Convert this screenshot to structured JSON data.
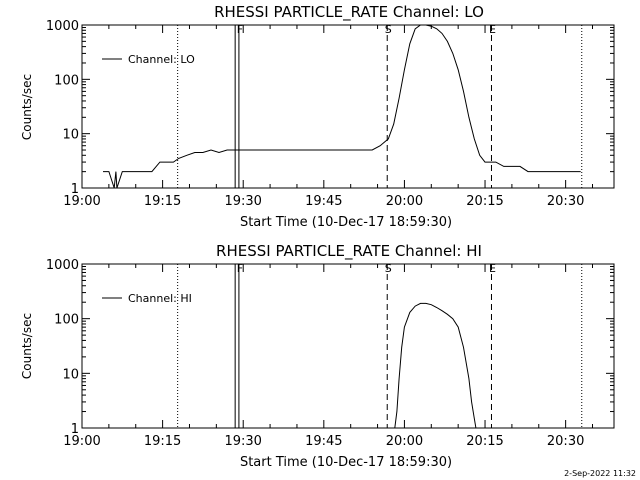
{
  "footer": {
    "timestamp": "2-Sep-2022 11:32"
  },
  "chart_data": [
    {
      "type": "line",
      "title": "RHESSI PARTICLE_RATE Channel: LO",
      "xlabel": "Start Time (10-Dec-17 18:59:30)",
      "ylabel": "Counts/sec",
      "x_unit": "minutes after 19:00",
      "xlim": [
        0,
        99
      ],
      "ylim": [
        1,
        1000
      ],
      "y_scale": "log",
      "x_ticks": [
        {
          "value": 0,
          "label": "19:00"
        },
        {
          "value": 15,
          "label": "19:15"
        },
        {
          "value": 30,
          "label": "19:30"
        },
        {
          "value": 45,
          "label": "19:45"
        },
        {
          "value": 60,
          "label": "20:00"
        },
        {
          "value": 75,
          "label": "20:15"
        },
        {
          "value": 90,
          "label": "20:30"
        }
      ],
      "y_ticks": [
        {
          "value": 1,
          "label": "1"
        },
        {
          "value": 10,
          "label": "10"
        },
        {
          "value": 100,
          "label": "100"
        },
        {
          "value": 1000,
          "label": "1000"
        }
      ],
      "legend": {
        "position": "top-left",
        "label": "Channel: LO"
      },
      "markers": [
        {
          "x": 17.8,
          "style": "dotted",
          "label": ""
        },
        {
          "x": 28.5,
          "style": "solid",
          "label": ""
        },
        {
          "x": 29.2,
          "style": "solid",
          "label": "F"
        },
        {
          "x": 56.8,
          "style": "dashed",
          "label": "S"
        },
        {
          "x": 76.2,
          "style": "dashed",
          "label": "E"
        },
        {
          "x": 93.0,
          "style": "dotted",
          "label": ""
        }
      ],
      "series": [
        {
          "name": "Channel: LO",
          "x": [
            3.9,
            5.0,
            6.0,
            6.3,
            6.5,
            7.5,
            8.5,
            9.0,
            10.0,
            11.0,
            12.0,
            13.0,
            14.5,
            16.0,
            17.0,
            18.0,
            19.5,
            21.0,
            22.5,
            24.0,
            25.5,
            27.0,
            28.5,
            30.0,
            32.0,
            34.0,
            36.0,
            38.0,
            40.0,
            42.0,
            44.0,
            46.0,
            48.0,
            50.0,
            52.0,
            54.0,
            55.5,
            57.0,
            58.0,
            59.0,
            60.0,
            61.0,
            62.0,
            63.0,
            64.0,
            65.0,
            66.0,
            67.0,
            68.0,
            69.0,
            70.0,
            71.0,
            72.0,
            73.0,
            74.0,
            75.0,
            76.0,
            77.0,
            78.5,
            80.0,
            81.5,
            83.0,
            84.5,
            86.0,
            87.5,
            88.5,
            89.0,
            90.0,
            91.0,
            92.8
          ],
          "values": [
            2,
            2,
            1,
            2,
            1,
            2,
            2,
            2,
            2,
            2,
            2,
            2,
            3,
            3,
            3,
            3.5,
            4,
            4.5,
            4.5,
            5,
            4.5,
            5,
            5,
            5,
            5,
            5,
            5,
            5,
            5,
            5,
            5,
            5,
            5,
            5,
            5,
            5,
            6,
            8,
            15,
            45,
            150,
            450,
            850,
            1000,
            1000,
            950,
            850,
            700,
            500,
            300,
            150,
            60,
            20,
            8,
            4,
            3,
            3,
            3,
            2.5,
            2.5,
            2.5,
            2,
            2,
            2,
            2,
            2,
            2,
            2,
            2,
            2
          ]
        }
      ]
    },
    {
      "type": "line",
      "title": "RHESSI PARTICLE_RATE Channel: HI",
      "xlabel": "Start Time (10-Dec-17 18:59:30)",
      "ylabel": "Counts/sec",
      "x_unit": "minutes after 19:00",
      "xlim": [
        0,
        99
      ],
      "ylim": [
        1,
        1000
      ],
      "y_scale": "log",
      "x_ticks": [
        {
          "value": 0,
          "label": "19:00"
        },
        {
          "value": 15,
          "label": "19:15"
        },
        {
          "value": 30,
          "label": "19:30"
        },
        {
          "value": 45,
          "label": "19:45"
        },
        {
          "value": 60,
          "label": "20:00"
        },
        {
          "value": 75,
          "label": "20:15"
        },
        {
          "value": 90,
          "label": "20:30"
        }
      ],
      "y_ticks": [
        {
          "value": 1,
          "label": "1"
        },
        {
          "value": 10,
          "label": "10"
        },
        {
          "value": 100,
          "label": "100"
        },
        {
          "value": 1000,
          "label": "1000"
        }
      ],
      "legend": {
        "position": "top-left",
        "label": "Channel: HI"
      },
      "markers": [
        {
          "x": 17.8,
          "style": "dotted",
          "label": ""
        },
        {
          "x": 28.5,
          "style": "solid",
          "label": ""
        },
        {
          "x": 29.2,
          "style": "solid",
          "label": "F"
        },
        {
          "x": 56.8,
          "style": "dashed",
          "label": "S"
        },
        {
          "x": 76.2,
          "style": "dashed",
          "label": "E"
        },
        {
          "x": 93.0,
          "style": "dotted",
          "label": ""
        }
      ],
      "series": [
        {
          "name": "Channel: HI",
          "x": [
            58.2,
            58.6,
            59.0,
            59.5,
            60.0,
            61.0,
            62.0,
            63.0,
            64.0,
            65.0,
            66.0,
            67.0,
            68.0,
            69.0,
            70.0,
            71.0,
            72.0,
            72.5,
            73.0,
            73.3
          ],
          "values": [
            1,
            2,
            8,
            30,
            70,
            130,
            170,
            190,
            190,
            180,
            160,
            140,
            120,
            100,
            70,
            30,
            8,
            3,
            1.5,
            1
          ]
        }
      ]
    }
  ]
}
